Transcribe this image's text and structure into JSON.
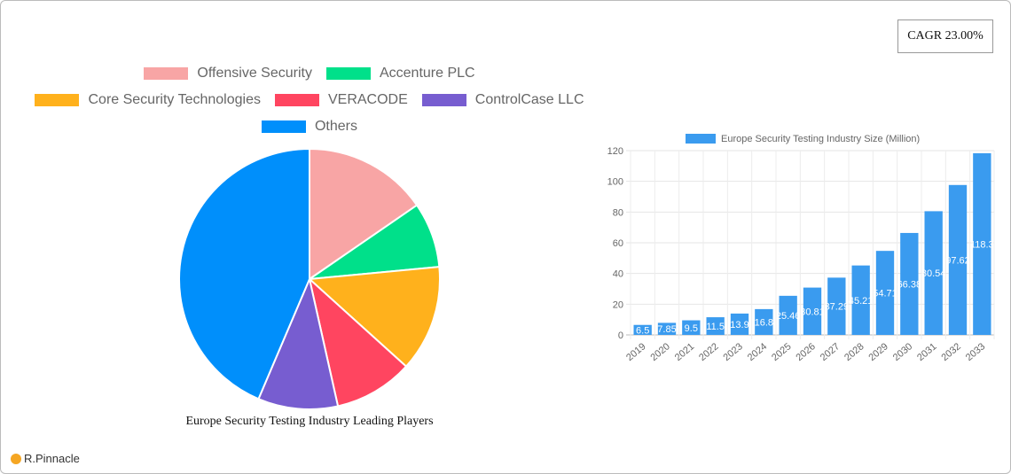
{
  "cagr": "CAGR 23.00%",
  "brand": "R.Pinnacle",
  "chart_data": [
    {
      "type": "pie",
      "title": "Europe Security Testing Industry Leading Players",
      "legend": "top",
      "labels": [
        "Offensive Security",
        "Accenture PLC",
        "Core Security Technologies",
        "VERACODE",
        "ControlCase LLC",
        "Others"
      ],
      "values": [
        15.4,
        8.1,
        13.2,
        9.8,
        9.9,
        43.6
      ],
      "colors": [
        "#f8a5a5",
        "#00e08a",
        "#ffb11c",
        "#ff4560",
        "#775dd0",
        "#008ffb"
      ]
    },
    {
      "type": "bar",
      "series": [
        {
          "name": "Europe Security Testing Industry Size (Million)",
          "color": "#3a9bef",
          "values": [
            6.5,
            7.85,
            9.5,
            11.5,
            13.9,
            16.8,
            25.46,
            30.81,
            37.29,
            45.21,
            54.71,
            66.38,
            80.54,
            97.62,
            118.3
          ]
        }
      ],
      "categories": [
        "2019",
        "2020",
        "2021",
        "2022",
        "2023",
        "2024",
        "2025",
        "2026",
        "2027",
        "2028",
        "2029",
        "2030",
        "2031",
        "2032",
        "2033"
      ],
      "data_labels": [
        "6.5",
        "7.85",
        "9.5",
        "11.5",
        "13.9",
        "16.8",
        "25.46",
        "30.81",
        "37.29",
        "45.21",
        "54.71",
        "66.38",
        "80.54",
        "97.62",
        "118.3"
      ],
      "yticks": [
        "0",
        "20",
        "40",
        "60",
        "80",
        "100",
        "120"
      ],
      "ylim": [
        0,
        120
      ],
      "grid": true,
      "legend": "top"
    }
  ]
}
